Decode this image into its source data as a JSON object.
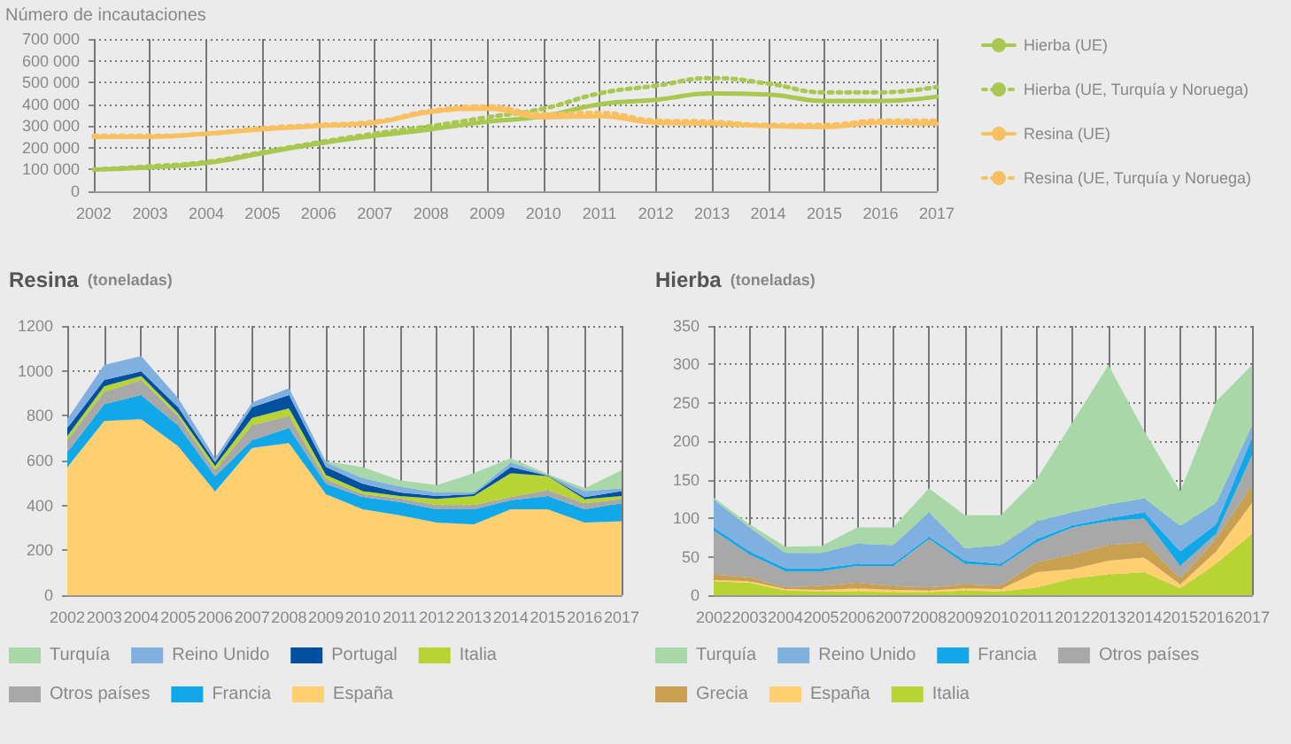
{
  "chart_data": [
    {
      "type": "line",
      "ylabel": "Número de incautaciones",
      "categories": [
        "2002",
        "2003",
        "2004",
        "2005",
        "2006",
        "2007",
        "2008",
        "2009",
        "2010",
        "2011",
        "2012",
        "2013",
        "2014",
        "2015",
        "2016",
        "2017"
      ],
      "series": [
        {
          "name": "Hierba (UE)",
          "color": "#a8c850",
          "line_style": "solid",
          "values": [
            100000,
            110000,
            130000,
            175000,
            220000,
            255000,
            285000,
            320000,
            345000,
            400000,
            420000,
            450000,
            445000,
            415000,
            415000,
            435000
          ]
        },
        {
          "name": "Hierba (UE, Turquía y Noruega)",
          "color": "#a8c850",
          "line_style": "dotted",
          "values": [
            100000,
            115000,
            135000,
            180000,
            225000,
            265000,
            300000,
            340000,
            380000,
            450000,
            485000,
            520000,
            495000,
            455000,
            455000,
            480000
          ]
        },
        {
          "name": "Resina (UE)",
          "color": "#f8c060",
          "line_style": "solid",
          "values": [
            250000,
            250000,
            265000,
            285000,
            300000,
            315000,
            365000,
            380000,
            340000,
            345000,
            315000,
            310000,
            300000,
            295000,
            315000,
            310000
          ]
        },
        {
          "name": "Resina (UE, Turquía y Noruega)",
          "color": "#f8c060",
          "line_style": "dotted",
          "values": [
            255000,
            255000,
            265000,
            290000,
            305000,
            320000,
            370000,
            390000,
            355000,
            360000,
            325000,
            320000,
            305000,
            305000,
            325000,
            325000
          ]
        }
      ],
      "ylim": [
        0,
        700000
      ],
      "yticks": [
        0,
        {
          "value": 100000,
          "label": "100 000"
        },
        {
          "value": 200000,
          "label": "200 000"
        },
        {
          "value": 300000,
          "label": "300 000"
        },
        {
          "value": 400000,
          "label": "400 000"
        },
        {
          "value": 500000,
          "label": "500 000"
        },
        {
          "value": 600000,
          "label": "600 000"
        },
        {
          "value": 700000,
          "label": "700 000"
        }
      ],
      "grid": true,
      "legend": "right",
      "marker": "none"
    },
    {
      "type": "area",
      "title": "Resina",
      "subtitle": "(toneladas)",
      "stacked": true,
      "categories": [
        "2002",
        "2003",
        "2004",
        "2005",
        "2006",
        "2007",
        "2008",
        "2009",
        "2010",
        "2011",
        "2012",
        "2013",
        "2014",
        "2015",
        "2016",
        "2017"
      ],
      "series": [
        {
          "name": "España",
          "color": "#ffcf70",
          "values": [
            570,
            777,
            785,
            664,
            463,
            656,
            678,
            450,
            383,
            356,
            324,
            316,
            383,
            383,
            324,
            330
          ]
        },
        {
          "name": "Francia",
          "color": "#10a8e8",
          "values": [
            67,
            75,
            107,
            93,
            67,
            35,
            67,
            46,
            54,
            59,
            59,
            67,
            40,
            59,
            59,
            80
          ]
        },
        {
          "name": "Otros países",
          "color": "#a8a8a8",
          "values": [
            54,
            54,
            67,
            40,
            27,
            67,
            53,
            21,
            13,
            16,
            19,
            19,
            14,
            27,
            27,
            18
          ]
        },
        {
          "name": "Italia",
          "color": "#b8d432",
          "values": [
            19,
            26,
            18,
            14,
            19,
            32,
            35,
            19,
            14,
            11,
            27,
            40,
            107,
            62,
            18,
            14
          ]
        },
        {
          "name": "Portugal",
          "color": "#0050a0",
          "values": [
            35,
            27,
            21,
            27,
            16,
            48,
            59,
            35,
            32,
            16,
            13,
            8,
            27,
            2,
            9,
            22
          ]
        },
        {
          "name": "Reino Unido",
          "color": "#80b0e0",
          "values": [
            40,
            67,
            68,
            40,
            19,
            21,
            31,
            21,
            26,
            27,
            16,
            8,
            21,
            3,
            27,
            13
          ]
        },
        {
          "name": "Turquía",
          "color": "#a8d8a8",
          "values": [
            0,
            0,
            0,
            0,
            0,
            0,
            0,
            5,
            48,
            27,
            32,
            86,
            19,
            5,
            13,
            80
          ]
        }
      ],
      "ylim": [
        0,
        1200
      ],
      "yticks": [
        0,
        200,
        400,
        600,
        800,
        1000,
        1200
      ],
      "grid": true,
      "legend": "bottom",
      "marker": "none"
    },
    {
      "type": "area",
      "title": "Hierba",
      "subtitle": "(toneladas)",
      "stacked": true,
      "categories": [
        "2002",
        "2003",
        "2004",
        "2005",
        "2006",
        "2007",
        "2008",
        "2009",
        "2010",
        "2011",
        "2012",
        "2013",
        "2014",
        "2015",
        "2016",
        "2017"
      ],
      "series": [
        {
          "name": "Italia",
          "color": "#b8d432",
          "values": [
            18,
            16,
            6,
            5,
            5,
            4,
            4,
            6,
            5,
            10,
            22,
            27,
            30,
            9,
            41,
            80
          ]
        },
        {
          "name": "España",
          "color": "#ffcf70",
          "values": [
            2,
            2,
            2,
            2,
            4,
            3,
            2,
            3,
            3,
            20,
            12,
            18,
            19,
            5,
            16,
            40
          ]
        },
        {
          "name": "Grecia",
          "color": "#c8a050",
          "values": [
            7,
            5,
            2,
            5,
            7,
            5,
            4,
            5,
            4,
            13,
            19,
            20,
            20,
            8,
            16,
            23
          ]
        },
        {
          "name": "Otros países",
          "color": "#a8a8a8",
          "values": [
            57,
            30,
            21,
            19,
            22,
            26,
            63,
            27,
            26,
            26,
            35,
            31,
            31,
            16,
            7,
            39
          ]
        },
        {
          "name": "Francia",
          "color": "#10a8e8",
          "values": [
            4,
            4,
            4,
            4,
            3,
            3,
            3,
            4,
            3,
            4,
            3,
            4,
            8,
            19,
            12,
            23
          ]
        },
        {
          "name": "Reino Unido",
          "color": "#80b0e0",
          "values": [
            36,
            31,
            20,
            20,
            26,
            24,
            32,
            16,
            24,
            23,
            17,
            18,
            18,
            33,
            28,
            16
          ]
        },
        {
          "name": "Turquía",
          "color": "#a8d8a8",
          "values": [
            3,
            4,
            8,
            9,
            21,
            23,
            31,
            43,
            39,
            55,
            117,
            181,
            87,
            45,
            132,
            78
          ]
        }
      ],
      "ylim": [
        0,
        350
      ],
      "yticks": [
        0,
        50,
        100,
        150,
        200,
        250,
        300,
        350
      ],
      "grid": true,
      "legend": "bottom",
      "marker": "none"
    }
  ]
}
